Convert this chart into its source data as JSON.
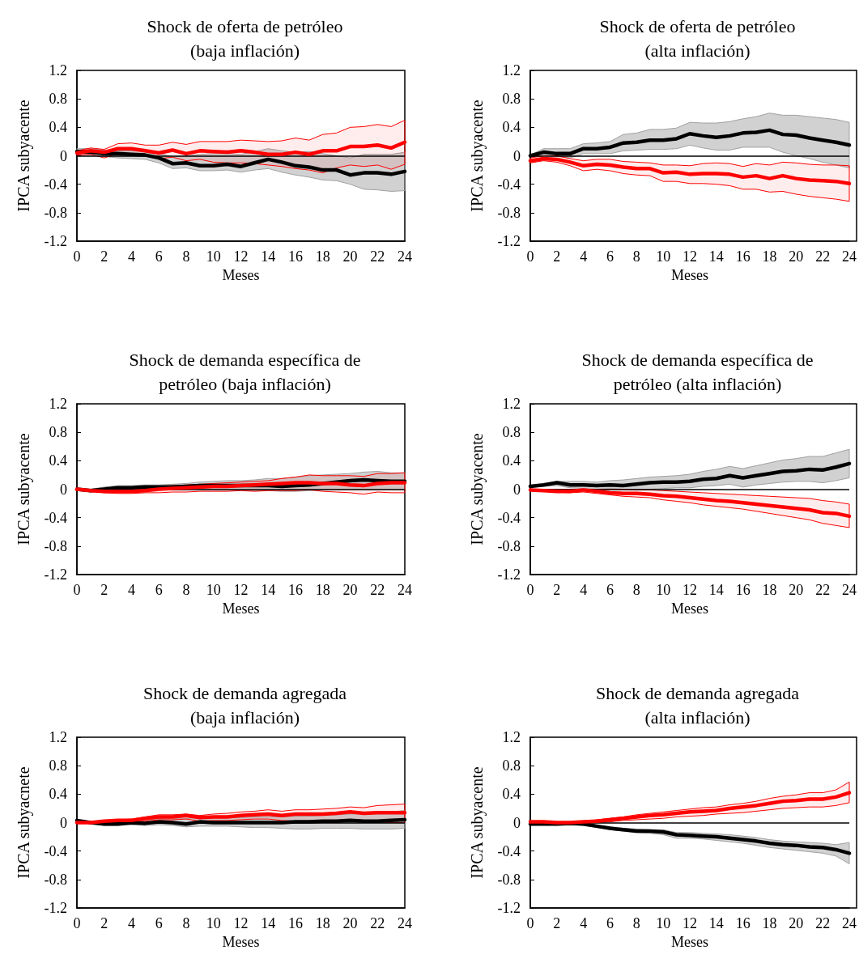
{
  "chart_data": [
    {
      "type": "line",
      "title": "Shock de oferta de petróleo\n(baja inflación)",
      "xlabel": "Meses",
      "ylabel": "IPCA subyacente",
      "x": [
        0,
        1,
        2,
        3,
        4,
        5,
        6,
        7,
        8,
        9,
        10,
        11,
        12,
        13,
        14,
        15,
        16,
        17,
        18,
        19,
        20,
        21,
        22,
        23,
        24
      ],
      "xlim": [
        0,
        24
      ],
      "xticks": [
        0,
        2,
        4,
        6,
        8,
        10,
        12,
        14,
        16,
        18,
        20,
        22,
        24
      ],
      "ylim": [
        -1.2,
        1.2
      ],
      "yticks": [
        -1.2,
        -0.8,
        -0.4,
        0,
        0.4,
        0.8,
        1.2
      ],
      "ref_lines": [
        {
          "axis": "y",
          "value": 0,
          "color": "#000000"
        }
      ],
      "series": [
        {
          "color": "#000000",
          "values": [
            0.06,
            0.05,
            0.03,
            0.03,
            0.02,
            0.01,
            -0.03,
            -0.11,
            -0.1,
            -0.14,
            -0.14,
            -0.12,
            -0.15,
            -0.1,
            -0.05,
            -0.09,
            -0.14,
            -0.16,
            -0.2,
            -0.2,
            -0.27,
            -0.24,
            -0.24,
            -0.26,
            -0.22
          ],
          "lower": [
            0.02,
            0.01,
            -0.01,
            -0.03,
            -0.04,
            -0.05,
            -0.1,
            -0.18,
            -0.17,
            -0.21,
            -0.21,
            -0.2,
            -0.23,
            -0.2,
            -0.18,
            -0.23,
            -0.27,
            -0.3,
            -0.34,
            -0.35,
            -0.4,
            -0.47,
            -0.48,
            -0.5,
            -0.49
          ],
          "upper": [
            0.1,
            0.1,
            0.08,
            0.07,
            0.07,
            0.06,
            0.04,
            -0.02,
            0.0,
            0.02,
            0.03,
            0.03,
            0.02,
            0.06,
            0.1,
            0.07,
            0.05,
            0.06,
            0.03,
            0.0,
            -0.03,
            0.02,
            0.02,
            0.02,
            0.05
          ]
        },
        {
          "color": "#ff0000",
          "values": [
            0.04,
            0.07,
            0.05,
            0.1,
            0.1,
            0.07,
            0.04,
            0.08,
            0.03,
            0.07,
            0.06,
            0.05,
            0.07,
            0.05,
            0.02,
            0.02,
            0.05,
            0.02,
            0.07,
            0.07,
            0.13,
            0.13,
            0.15,
            0.11,
            0.19
          ],
          "lower": [
            0.01,
            0.02,
            -0.03,
            0.03,
            0.03,
            0.0,
            -0.04,
            -0.02,
            -0.07,
            -0.05,
            -0.09,
            -0.1,
            -0.1,
            -0.11,
            -0.13,
            -0.15,
            -0.18,
            -0.2,
            -0.24,
            -0.17,
            -0.13,
            -0.15,
            -0.13,
            -0.19,
            -0.12
          ],
          "upper": [
            0.07,
            0.11,
            0.09,
            0.17,
            0.18,
            0.15,
            0.15,
            0.19,
            0.16,
            0.2,
            0.2,
            0.2,
            0.22,
            0.21,
            0.2,
            0.21,
            0.25,
            0.22,
            0.3,
            0.32,
            0.4,
            0.41,
            0.44,
            0.41,
            0.5
          ]
        }
      ]
    },
    {
      "type": "line",
      "title": "Shock de oferta de petróleo\n(alta inflación)",
      "xlabel": "Meses",
      "ylabel": "IPCA subyacente",
      "x": [
        0,
        1,
        2,
        3,
        4,
        5,
        6,
        7,
        8,
        9,
        10,
        11,
        12,
        13,
        14,
        15,
        16,
        17,
        18,
        19,
        20,
        21,
        22,
        23,
        24
      ],
      "xlim": [
        0,
        24
      ],
      "xticks": [
        0,
        2,
        4,
        6,
        8,
        10,
        12,
        14,
        16,
        18,
        20,
        22,
        24
      ],
      "ylim": [
        -1.2,
        1.2
      ],
      "yticks": [
        -1.2,
        -0.8,
        -0.4,
        0,
        0.4,
        0.8,
        1.2
      ],
      "ref_lines": [
        {
          "axis": "y",
          "value": 0,
          "color": "#000000"
        }
      ],
      "series": [
        {
          "color": "#000000",
          "values": [
            0.0,
            0.05,
            0.03,
            0.03,
            0.1,
            0.1,
            0.12,
            0.18,
            0.19,
            0.22,
            0.22,
            0.24,
            0.31,
            0.28,
            0.26,
            0.28,
            0.32,
            0.33,
            0.36,
            0.3,
            0.29,
            0.25,
            0.22,
            0.19,
            0.15
          ],
          "lower": [
            -0.01,
            0.0,
            -0.01,
            -0.03,
            0.03,
            0.03,
            0.03,
            0.07,
            0.08,
            0.09,
            0.09,
            0.1,
            0.15,
            0.11,
            0.08,
            0.08,
            0.12,
            0.12,
            0.12,
            0.05,
            0.0,
            -0.04,
            -0.09,
            -0.13,
            -0.17
          ],
          "upper": [
            0.01,
            0.1,
            0.1,
            0.1,
            0.17,
            0.18,
            0.2,
            0.3,
            0.32,
            0.37,
            0.37,
            0.39,
            0.47,
            0.46,
            0.46,
            0.48,
            0.52,
            0.55,
            0.6,
            0.57,
            0.57,
            0.55,
            0.53,
            0.51,
            0.47
          ]
        },
        {
          "color": "#ff0000",
          "values": [
            -0.07,
            -0.04,
            -0.05,
            -0.09,
            -0.14,
            -0.12,
            -0.13,
            -0.16,
            -0.18,
            -0.18,
            -0.24,
            -0.23,
            -0.26,
            -0.25,
            -0.25,
            -0.26,
            -0.3,
            -0.28,
            -0.32,
            -0.28,
            -0.32,
            -0.34,
            -0.35,
            -0.36,
            -0.39
          ],
          "lower": [
            -0.1,
            -0.07,
            -0.09,
            -0.14,
            -0.21,
            -0.19,
            -0.21,
            -0.25,
            -0.27,
            -0.28,
            -0.36,
            -0.36,
            -0.39,
            -0.39,
            -0.4,
            -0.42,
            -0.47,
            -0.47,
            -0.51,
            -0.5,
            -0.54,
            -0.57,
            -0.59,
            -0.61,
            -0.64
          ],
          "upper": [
            -0.03,
            0.0,
            0.0,
            -0.04,
            -0.07,
            -0.05,
            -0.05,
            -0.08,
            -0.09,
            -0.1,
            -0.13,
            -0.13,
            -0.14,
            -0.11,
            -0.1,
            -0.11,
            -0.15,
            -0.11,
            -0.13,
            -0.09,
            -0.1,
            -0.12,
            -0.13,
            -0.13,
            -0.14
          ]
        }
      ]
    },
    {
      "type": "line",
      "title": "Shock de demanda específica de\npetróleo (baja inflación)",
      "xlabel": "Meses",
      "ylabel": "IPCA subyacente",
      "x": [
        0,
        1,
        2,
        3,
        4,
        5,
        6,
        7,
        8,
        9,
        10,
        11,
        12,
        13,
        14,
        15,
        16,
        17,
        18,
        19,
        20,
        21,
        22,
        23,
        24
      ],
      "xlim": [
        0,
        24
      ],
      "xticks": [
        0,
        2,
        4,
        6,
        8,
        10,
        12,
        14,
        16,
        18,
        20,
        22,
        24
      ],
      "ylim": [
        -1.2,
        1.2
      ],
      "yticks": [
        -1.2,
        -0.8,
        -0.4,
        0,
        0.4,
        0.8,
        1.2
      ],
      "ref_lines": [
        {
          "axis": "y",
          "value": 0,
          "color": "#000000"
        }
      ],
      "series": [
        {
          "color": "#000000",
          "values": [
            0.0,
            -0.02,
            0.0,
            0.02,
            0.02,
            0.03,
            0.03,
            0.03,
            0.04,
            0.05,
            0.05,
            0.05,
            0.05,
            0.05,
            0.05,
            0.04,
            0.05,
            0.06,
            0.08,
            0.1,
            0.12,
            0.13,
            0.12,
            0.11,
            0.11
          ],
          "lower": [
            0.0,
            -0.04,
            -0.03,
            -0.02,
            -0.02,
            -0.01,
            -0.01,
            -0.01,
            -0.01,
            -0.01,
            -0.01,
            -0.01,
            -0.02,
            -0.02,
            -0.02,
            -0.03,
            -0.03,
            -0.02,
            -0.01,
            0.0,
            0.0,
            0.0,
            0.0,
            0.0,
            0.0
          ],
          "upper": [
            0.0,
            0.0,
            0.03,
            0.05,
            0.05,
            0.06,
            0.06,
            0.07,
            0.08,
            0.1,
            0.11,
            0.12,
            0.12,
            0.13,
            0.15,
            0.15,
            0.17,
            0.19,
            0.2,
            0.21,
            0.22,
            0.24,
            0.25,
            0.23,
            0.23
          ]
        },
        {
          "color": "#ff0000",
          "values": [
            0.0,
            -0.02,
            -0.03,
            -0.03,
            -0.03,
            -0.02,
            0.0,
            0.01,
            0.02,
            0.03,
            0.04,
            0.04,
            0.05,
            0.06,
            0.07,
            0.08,
            0.09,
            0.09,
            0.08,
            0.08,
            0.06,
            0.05,
            0.08,
            0.09,
            0.09
          ],
          "lower": [
            0.0,
            -0.03,
            -0.05,
            -0.06,
            -0.06,
            -0.05,
            -0.05,
            -0.04,
            -0.04,
            -0.03,
            -0.03,
            -0.03,
            -0.02,
            -0.03,
            -0.02,
            -0.02,
            -0.02,
            -0.01,
            -0.03,
            -0.04,
            -0.05,
            -0.07,
            -0.04,
            -0.05,
            -0.05
          ],
          "upper": [
            0.0,
            0.0,
            0.0,
            0.01,
            0.01,
            0.02,
            0.04,
            0.05,
            0.06,
            0.07,
            0.08,
            0.09,
            0.1,
            0.11,
            0.12,
            0.15,
            0.17,
            0.2,
            0.19,
            0.19,
            0.19,
            0.18,
            0.22,
            0.22,
            0.23
          ]
        }
      ]
    },
    {
      "type": "line",
      "title": "Shock de demanda específica de\npetróleo (alta inflación)",
      "xlabel": "Meses",
      "ylabel": "IPCA subyacente",
      "x": [
        0,
        1,
        2,
        3,
        4,
        5,
        6,
        7,
        8,
        9,
        10,
        11,
        12,
        13,
        14,
        15,
        16,
        17,
        18,
        19,
        20,
        21,
        22,
        23,
        24
      ],
      "xlim": [
        0,
        24
      ],
      "xticks": [
        0,
        2,
        4,
        6,
        8,
        10,
        12,
        14,
        16,
        18,
        20,
        22,
        24
      ],
      "ylim": [
        -1.2,
        1.2
      ],
      "yticks": [
        -1.2,
        -0.8,
        -0.4,
        0,
        0.4,
        0.8,
        1.2
      ],
      "ref_lines": [
        {
          "axis": "y",
          "value": 0,
          "color": "#000000"
        }
      ],
      "series": [
        {
          "color": "#000000",
          "values": [
            0.04,
            0.06,
            0.09,
            0.06,
            0.06,
            0.05,
            0.06,
            0.05,
            0.07,
            0.09,
            0.1,
            0.1,
            0.11,
            0.14,
            0.15,
            0.19,
            0.16,
            0.19,
            0.22,
            0.25,
            0.26,
            0.28,
            0.27,
            0.31,
            0.36
          ],
          "lower": [
            0.03,
            0.04,
            0.05,
            0.02,
            0.01,
            0.0,
            0.01,
            0.0,
            0.0,
            0.0,
            0.01,
            0.02,
            0.02,
            0.04,
            0.05,
            0.07,
            0.03,
            0.06,
            0.08,
            0.1,
            0.11,
            0.11,
            0.09,
            0.12,
            0.16
          ],
          "upper": [
            0.05,
            0.07,
            0.11,
            0.11,
            0.11,
            0.1,
            0.12,
            0.13,
            0.15,
            0.17,
            0.18,
            0.19,
            0.21,
            0.25,
            0.28,
            0.32,
            0.29,
            0.33,
            0.37,
            0.41,
            0.43,
            0.46,
            0.46,
            0.51,
            0.56
          ]
        },
        {
          "color": "#ff0000",
          "values": [
            -0.01,
            -0.02,
            -0.03,
            -0.03,
            -0.01,
            -0.03,
            -0.05,
            -0.06,
            -0.06,
            -0.07,
            -0.09,
            -0.1,
            -0.12,
            -0.14,
            -0.16,
            -0.17,
            -0.19,
            -0.21,
            -0.23,
            -0.25,
            -0.27,
            -0.29,
            -0.33,
            -0.34,
            -0.38
          ],
          "lower": [
            -0.02,
            -0.03,
            -0.04,
            -0.05,
            -0.04,
            -0.06,
            -0.08,
            -0.1,
            -0.11,
            -0.12,
            -0.15,
            -0.17,
            -0.19,
            -0.22,
            -0.24,
            -0.26,
            -0.28,
            -0.31,
            -0.34,
            -0.37,
            -0.4,
            -0.43,
            -0.48,
            -0.51,
            -0.54
          ],
          "upper": [
            0.0,
            0.0,
            0.0,
            0.0,
            0.0,
            0.0,
            0.0,
            0.0,
            -0.01,
            -0.01,
            -0.02,
            -0.03,
            -0.04,
            -0.05,
            -0.06,
            -0.07,
            -0.08,
            -0.09,
            -0.1,
            -0.11,
            -0.12,
            -0.13,
            -0.16,
            -0.18,
            -0.21
          ]
        }
      ]
    },
    {
      "type": "line",
      "title": "Shock de demanda agregada\n(baja inflación)",
      "xlabel": "Meses",
      "ylabel": "IPCA subyacnete",
      "x": [
        0,
        1,
        2,
        3,
        4,
        5,
        6,
        7,
        8,
        9,
        10,
        11,
        12,
        13,
        14,
        15,
        16,
        17,
        18,
        19,
        20,
        21,
        22,
        23,
        24
      ],
      "xlim": [
        0,
        24
      ],
      "xticks": [
        0,
        2,
        4,
        6,
        8,
        10,
        12,
        14,
        16,
        18,
        20,
        22,
        24
      ],
      "ylim": [
        -1.2,
        1.2
      ],
      "yticks": [
        -1.2,
        -0.8,
        -0.4,
        0,
        0.4,
        0.8,
        1.2
      ],
      "ref_lines": [
        {
          "axis": "y",
          "value": 0,
          "color": "#000000"
        }
      ],
      "series": [
        {
          "color": "#000000",
          "values": [
            0.03,
            0.0,
            -0.02,
            -0.02,
            0.0,
            -0.01,
            0.01,
            0.0,
            -0.02,
            0.01,
            0.0,
            0.0,
            0.0,
            0.0,
            0.0,
            0.0,
            0.01,
            0.01,
            0.02,
            0.02,
            0.03,
            0.02,
            0.02,
            0.03,
            0.04
          ],
          "lower": [
            0.02,
            -0.01,
            -0.04,
            -0.04,
            -0.03,
            -0.04,
            -0.03,
            -0.04,
            -0.06,
            -0.05,
            -0.05,
            -0.05,
            -0.06,
            -0.07,
            -0.07,
            -0.08,
            -0.09,
            -0.09,
            -0.08,
            -0.08,
            -0.08,
            -0.09,
            -0.09,
            -0.09,
            -0.08
          ],
          "upper": [
            0.04,
            0.01,
            0.0,
            0.01,
            0.03,
            0.03,
            0.06,
            0.06,
            0.06,
            0.07,
            0.07,
            0.07,
            0.07,
            0.08,
            0.08,
            0.08,
            0.09,
            0.09,
            0.1,
            0.11,
            0.12,
            0.13,
            0.13,
            0.15,
            0.17
          ]
        },
        {
          "color": "#ff0000",
          "values": [
            0.0,
            0.0,
            0.02,
            0.03,
            0.03,
            0.06,
            0.08,
            0.08,
            0.1,
            0.07,
            0.08,
            0.08,
            0.1,
            0.11,
            0.12,
            0.1,
            0.12,
            0.12,
            0.12,
            0.13,
            0.15,
            0.13,
            0.14,
            0.14,
            0.14
          ],
          "lower": [
            0.0,
            -0.01,
            0.0,
            0.01,
            0.01,
            0.02,
            0.04,
            0.04,
            0.05,
            0.02,
            0.03,
            0.03,
            0.04,
            0.05,
            0.05,
            0.03,
            0.02,
            0.02,
            0.02,
            0.02,
            0.03,
            0.01,
            0.01,
            0.0,
            0.0
          ],
          "upper": [
            0.0,
            0.01,
            0.03,
            0.04,
            0.05,
            0.08,
            0.11,
            0.11,
            0.12,
            0.1,
            0.12,
            0.13,
            0.15,
            0.16,
            0.18,
            0.16,
            0.18,
            0.18,
            0.19,
            0.2,
            0.22,
            0.21,
            0.24,
            0.25,
            0.26
          ]
        }
      ]
    },
    {
      "type": "line",
      "title": "Shock de demanda agregada\n(alta inflación)",
      "xlabel": "Meses",
      "ylabel": "IPCA subyacente",
      "x": [
        0,
        1,
        2,
        3,
        4,
        5,
        6,
        7,
        8,
        9,
        10,
        11,
        12,
        13,
        14,
        15,
        16,
        17,
        18,
        19,
        20,
        21,
        22,
        23,
        24
      ],
      "xlim": [
        0,
        24
      ],
      "xticks": [
        0,
        2,
        4,
        6,
        8,
        10,
        12,
        14,
        16,
        18,
        20,
        22,
        24
      ],
      "ylim": [
        -1.2,
        1.2
      ],
      "yticks": [
        -1.2,
        -0.8,
        -0.4,
        0,
        0.4,
        0.8,
        1.2
      ],
      "ref_lines": [
        {
          "axis": "y",
          "value": 0,
          "color": "#000000"
        }
      ],
      "series": [
        {
          "color": "#000000",
          "values": [
            -0.02,
            -0.02,
            -0.02,
            -0.01,
            -0.02,
            -0.05,
            -0.08,
            -0.1,
            -0.12,
            -0.12,
            -0.13,
            -0.17,
            -0.18,
            -0.19,
            -0.2,
            -0.22,
            -0.24,
            -0.26,
            -0.29,
            -0.31,
            -0.32,
            -0.34,
            -0.35,
            -0.38,
            -0.43
          ],
          "lower": [
            -0.03,
            -0.03,
            -0.03,
            -0.02,
            -0.04,
            -0.07,
            -0.1,
            -0.12,
            -0.14,
            -0.15,
            -0.17,
            -0.22,
            -0.22,
            -0.23,
            -0.25,
            -0.27,
            -0.29,
            -0.32,
            -0.35,
            -0.37,
            -0.39,
            -0.41,
            -0.43,
            -0.47,
            -0.58
          ],
          "upper": [
            -0.01,
            -0.01,
            -0.01,
            0.0,
            -0.01,
            -0.04,
            -0.06,
            -0.08,
            -0.09,
            -0.1,
            -0.1,
            -0.14,
            -0.14,
            -0.15,
            -0.16,
            -0.17,
            -0.19,
            -0.21,
            -0.24,
            -0.26,
            -0.27,
            -0.28,
            -0.29,
            -0.31,
            -0.28
          ]
        },
        {
          "color": "#ff0000",
          "values": [
            0.01,
            0.01,
            0.0,
            0.0,
            0.01,
            0.02,
            0.04,
            0.06,
            0.08,
            0.1,
            0.11,
            0.13,
            0.15,
            0.16,
            0.17,
            0.2,
            0.22,
            0.24,
            0.27,
            0.3,
            0.31,
            0.33,
            0.33,
            0.36,
            0.42
          ],
          "lower": [
            0.01,
            0.01,
            0.0,
            0.0,
            0.0,
            0.0,
            0.01,
            0.03,
            0.04,
            0.05,
            0.06,
            0.08,
            0.09,
            0.1,
            0.12,
            0.13,
            0.14,
            0.16,
            0.18,
            0.2,
            0.21,
            0.22,
            0.22,
            0.24,
            0.28
          ],
          "upper": [
            0.01,
            0.01,
            0.0,
            0.0,
            0.02,
            0.04,
            0.06,
            0.08,
            0.11,
            0.13,
            0.15,
            0.17,
            0.19,
            0.21,
            0.22,
            0.25,
            0.27,
            0.3,
            0.34,
            0.37,
            0.39,
            0.42,
            0.42,
            0.46,
            0.57
          ]
        }
      ]
    }
  ]
}
